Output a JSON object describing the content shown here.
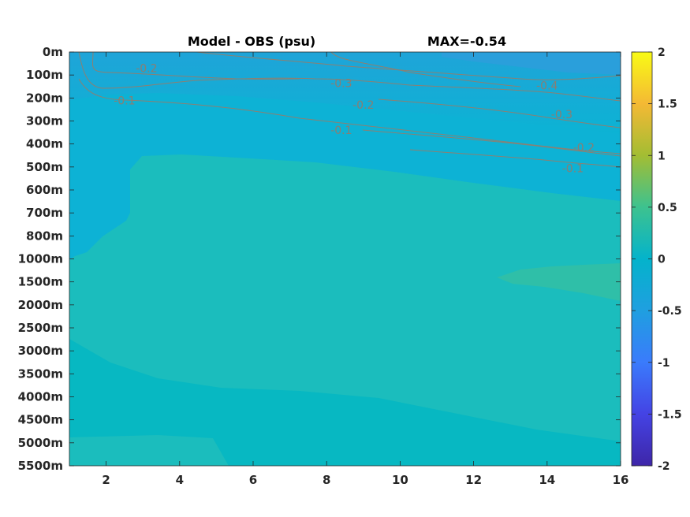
{
  "chart_data": {
    "type": "heatmap",
    "title": "Model - OBS (psu)",
    "max_label": "MAX=-0.54",
    "xlabel": "",
    "ylabel": "",
    "x_ticks": [
      "2",
      "4",
      "6",
      "8",
      "10",
      "12",
      "14",
      "16"
    ],
    "xlim": [
      1,
      16
    ],
    "y_ticks": [
      "0m",
      "100m",
      "200m",
      "300m",
      "400m",
      "500m",
      "600m",
      "700m",
      "800m",
      "1000m",
      "1500m",
      "2000m",
      "2500m",
      "3000m",
      "3500m",
      "4000m",
      "4500m",
      "5000m",
      "5500m"
    ],
    "y_reversed": true,
    "colorbar": {
      "colormap": "parula",
      "range": [
        -2,
        2
      ],
      "tick_labels": [
        "2",
        "1.5",
        "1",
        "0.5",
        "0",
        "-0.5",
        "-1",
        "-1.5",
        "-2"
      ]
    },
    "contour_labels": [
      {
        "text": "-0.2",
        "x": 3.1,
        "depth": "70m"
      },
      {
        "text": "-0.1",
        "x": 2.5,
        "depth": "210m"
      },
      {
        "text": "-0.3",
        "x": 8.4,
        "depth": "135m"
      },
      {
        "text": "-0.2",
        "x": 9.0,
        "depth": "230m"
      },
      {
        "text": "-0.1",
        "x": 8.4,
        "depth": "340m"
      },
      {
        "text": "-0.4",
        "x": 14.0,
        "depth": "145m"
      },
      {
        "text": "-0.3",
        "x": 14.4,
        "depth": "270m"
      },
      {
        "text": "-0.2",
        "x": 15.0,
        "depth": "415m"
      },
      {
        "text": "-0.1",
        "x": 14.7,
        "depth": "505m"
      }
    ],
    "field_colors": {
      "surface_min": "#22a3d6",
      "upper_negative": "#0db2d5",
      "near_zero": "#1bbdbd",
      "deep": "#07b8c2",
      "slight_positive": "#2fbfa8"
    }
  }
}
